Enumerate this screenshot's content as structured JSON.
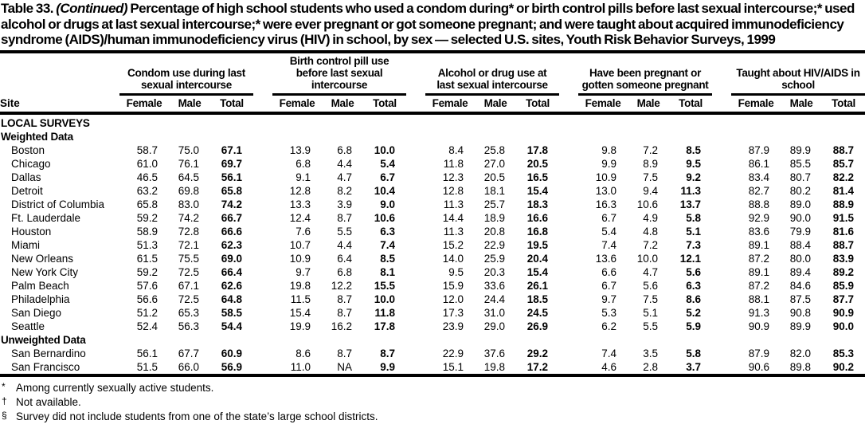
{
  "title": {
    "prefix": "Table 33.",
    "continued": "(Continued)",
    "rest": "Percentage of high school students who used a condom during* or birth control pills before last sexual intercourse;* used alcohol or drugs at last sexual intercourse;* were ever pregnant or got someone pregnant; and were taught about acquired immunodeficiency syndrome (AIDS)/human immunodeficiency virus (HIV) in school, by sex — selected U.S. sites, Youth Risk Behavior Surveys, 1999"
  },
  "table": {
    "site_header": "Site",
    "groups": [
      {
        "label": "Condom use during last sexual intercourse",
        "columns": [
          "Female",
          "Male",
          "Total"
        ]
      },
      {
        "label": "Birth control pill use before last sexual intercourse",
        "columns": [
          "Female",
          "Male",
          "Total"
        ]
      },
      {
        "label": "Alcohol or drug use at last sexual intercourse",
        "columns": [
          "Female",
          "Male",
          "Total"
        ]
      },
      {
        "label": "Have been pregnant or gotten someone pregnant",
        "columns": [
          "Female",
          "Male",
          "Total"
        ]
      },
      {
        "label": "Taught about HIV/AIDS in school",
        "columns": [
          "Female",
          "Male",
          "Total"
        ]
      }
    ],
    "sections": [
      {
        "heading": "LOCAL SURVEYS",
        "subsections": [
          {
            "heading": "Weighted Data",
            "rows": [
              {
                "site": "Boston",
                "values": [
                  "58.7",
                  "75.0",
                  "67.1",
                  "13.9",
                  "6.8",
                  "10.0",
                  "8.4",
                  "25.8",
                  "17.8",
                  "9.8",
                  "7.2",
                  "8.5",
                  "87.9",
                  "89.9",
                  "88.7"
                ]
              },
              {
                "site": "Chicago",
                "values": [
                  "61.0",
                  "76.1",
                  "69.7",
                  "6.8",
                  "4.4",
                  "5.4",
                  "11.8",
                  "27.0",
                  "20.5",
                  "9.9",
                  "8.9",
                  "9.5",
                  "86.1",
                  "85.5",
                  "85.7"
                ]
              },
              {
                "site": "Dallas",
                "values": [
                  "46.5",
                  "64.5",
                  "56.1",
                  "9.1",
                  "4.7",
                  "6.7",
                  "12.3",
                  "20.5",
                  "16.5",
                  "10.9",
                  "7.5",
                  "9.2",
                  "83.4",
                  "80.7",
                  "82.2"
                ]
              },
              {
                "site": "Detroit",
                "values": [
                  "63.2",
                  "69.8",
                  "65.8",
                  "12.8",
                  "8.2",
                  "10.4",
                  "12.8",
                  "18.1",
                  "15.4",
                  "13.0",
                  "9.4",
                  "11.3",
                  "82.7",
                  "80.2",
                  "81.4"
                ]
              },
              {
                "site": "District of Columbia",
                "values": [
                  "65.8",
                  "83.0",
                  "74.2",
                  "13.3",
                  "3.9",
                  "9.0",
                  "11.3",
                  "25.7",
                  "18.3",
                  "16.3",
                  "10.6",
                  "13.7",
                  "88.8",
                  "89.0",
                  "88.9"
                ]
              },
              {
                "site": "Ft. Lauderdale",
                "values": [
                  "59.2",
                  "74.2",
                  "66.7",
                  "12.4",
                  "8.7",
                  "10.6",
                  "14.4",
                  "18.9",
                  "16.6",
                  "6.7",
                  "4.9",
                  "5.8",
                  "92.9",
                  "90.0",
                  "91.5"
                ]
              },
              {
                "site": "Houston",
                "values": [
                  "58.9",
                  "72.8",
                  "66.6",
                  "7.6",
                  "5.5",
                  "6.3",
                  "11.3",
                  "20.8",
                  "16.8",
                  "5.4",
                  "4.8",
                  "5.1",
                  "83.6",
                  "79.9",
                  "81.6"
                ]
              },
              {
                "site": "Miami",
                "values": [
                  "51.3",
                  "72.1",
                  "62.3",
                  "10.7",
                  "4.4",
                  "7.4",
                  "15.2",
                  "22.9",
                  "19.5",
                  "7.4",
                  "7.2",
                  "7.3",
                  "89.1",
                  "88.4",
                  "88.7"
                ]
              },
              {
                "site": "New Orleans",
                "values": [
                  "61.5",
                  "75.5",
                  "69.0",
                  "10.9",
                  "6.4",
                  "8.5",
                  "14.0",
                  "25.9",
                  "20.4",
                  "13.6",
                  "10.0",
                  "12.1",
                  "87.2",
                  "80.0",
                  "83.9"
                ]
              },
              {
                "site": "New York City",
                "values": [
                  "59.2",
                  "72.5",
                  "66.4",
                  "9.7",
                  "6.8",
                  "8.1",
                  "9.5",
                  "20.3",
                  "15.4",
                  "6.6",
                  "4.7",
                  "5.6",
                  "89.1",
                  "89.4",
                  "89.2"
                ]
              },
              {
                "site": "Palm Beach",
                "values": [
                  "57.6",
                  "67.1",
                  "62.6",
                  "19.8",
                  "12.2",
                  "15.5",
                  "15.9",
                  "33.6",
                  "26.1",
                  "6.7",
                  "5.6",
                  "6.3",
                  "87.2",
                  "84.6",
                  "85.9"
                ]
              },
              {
                "site": "Philadelphia",
                "values": [
                  "56.6",
                  "72.5",
                  "64.8",
                  "11.5",
                  "8.7",
                  "10.0",
                  "12.0",
                  "24.4",
                  "18.5",
                  "9.7",
                  "7.5",
                  "8.6",
                  "88.1",
                  "87.5",
                  "87.7"
                ]
              },
              {
                "site": "San Diego",
                "values": [
                  "51.2",
                  "65.3",
                  "58.5",
                  "15.4",
                  "8.7",
                  "11.8",
                  "17.3",
                  "31.0",
                  "24.5",
                  "5.3",
                  "5.1",
                  "5.2",
                  "91.3",
                  "90.8",
                  "90.9"
                ]
              },
              {
                "site": "Seattle",
                "values": [
                  "52.4",
                  "56.3",
                  "54.4",
                  "19.9",
                  "16.2",
                  "17.8",
                  "23.9",
                  "29.0",
                  "26.9",
                  "6.2",
                  "5.5",
                  "5.9",
                  "90.9",
                  "89.9",
                  "90.0"
                ]
              }
            ]
          },
          {
            "heading": "Unweighted Data",
            "rows": [
              {
                "site": "San Bernardino",
                "values": [
                  "56.1",
                  "67.7",
                  "60.9",
                  "8.6",
                  "8.7",
                  "8.7",
                  "22.9",
                  "37.6",
                  "29.2",
                  "7.4",
                  "3.5",
                  "5.8",
                  "87.9",
                  "82.0",
                  "85.3"
                ]
              },
              {
                "site": "San Francisco",
                "values": [
                  "51.5",
                  "66.0",
                  "56.9",
                  "11.0",
                  "NA",
                  "9.9",
                  "15.1",
                  "19.8",
                  "17.2",
                  "4.6",
                  "2.8",
                  "3.7",
                  "90.6",
                  "89.8",
                  "90.2"
                ]
              }
            ]
          }
        ]
      }
    ]
  },
  "footnotes": [
    {
      "symbol": "*",
      "text": "Among currently sexually active students."
    },
    {
      "symbol": "†",
      "text": "Not available."
    },
    {
      "symbol": "§",
      "text": "Survey did not include students from one of the state’s large school districts."
    }
  ]
}
